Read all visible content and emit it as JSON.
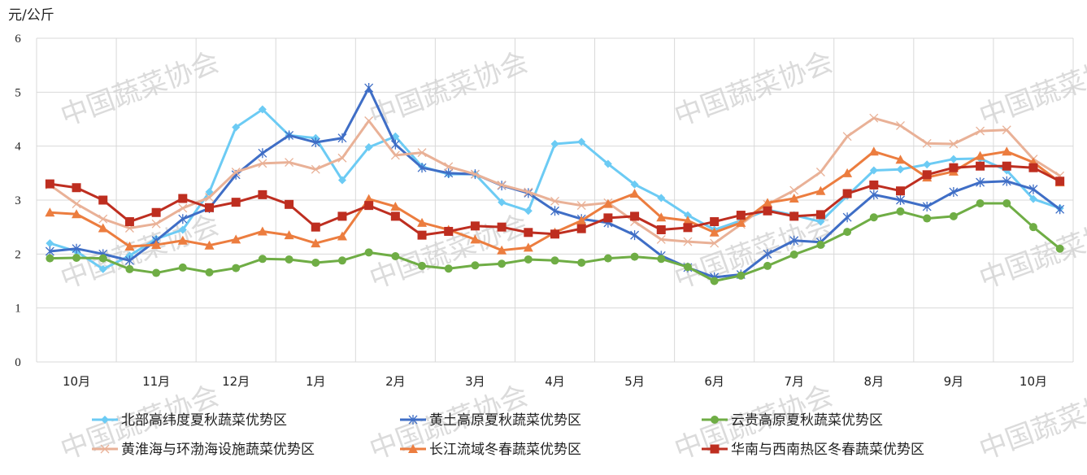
{
  "chart_data": {
    "type": "line",
    "ylabel": "元/公斤",
    "ylim": [
      0,
      6
    ],
    "yticks": [
      "0",
      "1",
      "2",
      "3",
      "4",
      "5",
      "6"
    ],
    "grid": true,
    "legend_position": "bottom",
    "month_labels": [
      "10月",
      "11月",
      "12月",
      "1月",
      "2月",
      "3月",
      "4月",
      "5月",
      "6月",
      "7月",
      "8月",
      "9月",
      "10月"
    ],
    "points_per_month": 3,
    "watermark": "中国蔬菜协会",
    "series": [
      {
        "name": "北部高纬度夏秋蔬菜优势区",
        "color": "#6CCBF4",
        "marker": "diamond",
        "values": [
          2.2,
          2.05,
          1.72,
          1.97,
          2.28,
          2.45,
          3.15,
          4.35,
          4.68,
          4.2,
          4.15,
          3.37,
          3.98,
          4.18,
          3.62,
          3.48,
          3.48,
          2.96,
          2.8,
          4.04,
          4.08,
          3.67,
          3.29,
          3.04,
          2.72,
          2.45,
          2.62,
          2.82,
          2.72,
          2.6,
          3.08,
          3.55,
          3.57,
          3.66,
          3.76,
          3.77,
          3.55,
          3.02,
          2.85
        ]
      },
      {
        "name": "黄土高原夏秋蔬菜优势区",
        "color": "#3F6EC6",
        "marker": "asterisk",
        "values": [
          2.05,
          2.1,
          2.0,
          1.88,
          2.25,
          2.65,
          2.85,
          3.47,
          3.87,
          4.2,
          4.07,
          4.15,
          5.08,
          4.03,
          3.6,
          3.5,
          3.48,
          3.27,
          3.13,
          2.8,
          2.65,
          2.58,
          2.35,
          1.97,
          1.75,
          1.57,
          1.62,
          2.0,
          2.25,
          2.22,
          2.68,
          3.1,
          3.0,
          2.88,
          3.15,
          3.33,
          3.35,
          3.2,
          2.83
        ]
      },
      {
        "name": "云贵高原夏秋蔬菜优势区",
        "color": "#6FAD45",
        "marker": "circle",
        "values": [
          1.92,
          1.93,
          1.92,
          1.72,
          1.65,
          1.75,
          1.66,
          1.74,
          1.91,
          1.9,
          1.84,
          1.88,
          2.03,
          1.96,
          1.78,
          1.73,
          1.79,
          1.82,
          1.9,
          1.88,
          1.84,
          1.92,
          1.95,
          1.91,
          1.76,
          1.5,
          1.6,
          1.78,
          1.99,
          2.17,
          2.41,
          2.68,
          2.79,
          2.66,
          2.7,
          2.94,
          2.94,
          2.5,
          2.1
        ]
      },
      {
        "name": "黄淮海与环渤海设施蔬菜优势区",
        "color": "#E9B197",
        "marker": "x",
        "values": [
          3.28,
          2.93,
          2.65,
          2.48,
          2.56,
          2.85,
          3.05,
          3.52,
          3.68,
          3.7,
          3.57,
          3.78,
          4.47,
          3.83,
          3.88,
          3.62,
          3.48,
          3.28,
          3.15,
          2.98,
          2.9,
          2.95,
          2.6,
          2.27,
          2.23,
          2.2,
          2.55,
          2.92,
          3.18,
          3.52,
          4.18,
          4.52,
          4.38,
          4.05,
          4.04,
          4.28,
          4.3,
          3.76,
          3.45
        ]
      },
      {
        "name": "长江流域冬春蔬菜优势区",
        "color": "#EC7D3F",
        "marker": "triangle",
        "values": [
          2.77,
          2.74,
          2.48,
          2.14,
          2.17,
          2.25,
          2.16,
          2.27,
          2.42,
          2.35,
          2.2,
          2.33,
          3.02,
          2.88,
          2.58,
          2.45,
          2.27,
          2.07,
          2.12,
          2.4,
          2.62,
          2.93,
          3.12,
          2.68,
          2.62,
          2.4,
          2.58,
          2.95,
          3.03,
          3.17,
          3.5,
          3.9,
          3.75,
          3.42,
          3.53,
          3.82,
          3.9,
          3.7,
          3.33
        ]
      },
      {
        "name": "华南与西南热区冬春蔬菜优势区",
        "color": "#BE2E20",
        "marker": "square",
        "values": [
          3.3,
          3.23,
          3.0,
          2.6,
          2.77,
          3.03,
          2.86,
          2.96,
          3.1,
          2.92,
          2.5,
          2.7,
          2.9,
          2.7,
          2.35,
          2.42,
          2.52,
          2.5,
          2.4,
          2.37,
          2.47,
          2.67,
          2.7,
          2.45,
          2.49,
          2.6,
          2.72,
          2.8,
          2.7,
          2.73,
          3.12,
          3.28,
          3.17,
          3.47,
          3.6,
          3.63,
          3.63,
          3.6,
          3.35
        ]
      }
    ]
  }
}
